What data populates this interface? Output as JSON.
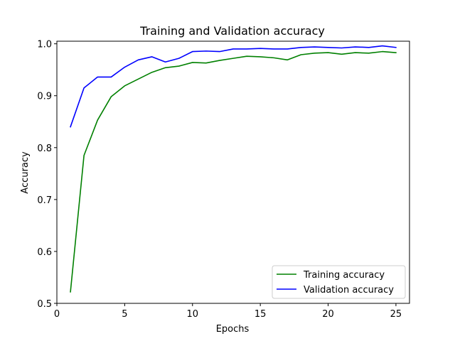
{
  "chart_data": {
    "type": "line",
    "title": "Training and Validation accuracy",
    "xlabel": "Epochs",
    "ylabel": "Accuracy",
    "xlim": [
      0,
      26
    ],
    "ylim": [
      0.5,
      1.005
    ],
    "x_ticks": [
      0,
      5,
      10,
      15,
      20,
      25
    ],
    "x_tick_labels": [
      "0",
      "5",
      "10",
      "15",
      "20",
      "25"
    ],
    "y_ticks": [
      0.5,
      0.6,
      0.7,
      0.8,
      0.9,
      1.0
    ],
    "y_tick_labels": [
      "0.5",
      "0.6",
      "0.7",
      "0.8",
      "0.9",
      "1.0"
    ],
    "grid": false,
    "legend_position": "lower-right",
    "x": [
      1,
      2,
      3,
      4,
      5,
      6,
      7,
      8,
      9,
      10,
      11,
      12,
      13,
      14,
      15,
      16,
      17,
      18,
      19,
      20,
      21,
      22,
      23,
      24,
      25
    ],
    "series": [
      {
        "name": "Training accuracy",
        "color": "#008000",
        "values": [
          0.522,
          0.785,
          0.853,
          0.898,
          0.919,
          0.932,
          0.945,
          0.954,
          0.957,
          0.964,
          0.963,
          0.968,
          0.972,
          0.976,
          0.975,
          0.973,
          0.969,
          0.979,
          0.982,
          0.983,
          0.98,
          0.983,
          0.982,
          0.985,
          0.983
        ]
      },
      {
        "name": "Validation accuracy",
        "color": "#0000ff",
        "values": [
          0.84,
          0.915,
          0.936,
          0.936,
          0.955,
          0.969,
          0.975,
          0.965,
          0.972,
          0.985,
          0.986,
          0.985,
          0.99,
          0.99,
          0.991,
          0.99,
          0.99,
          0.993,
          0.994,
          0.993,
          0.992,
          0.994,
          0.993,
          0.996,
          0.993
        ]
      }
    ]
  }
}
